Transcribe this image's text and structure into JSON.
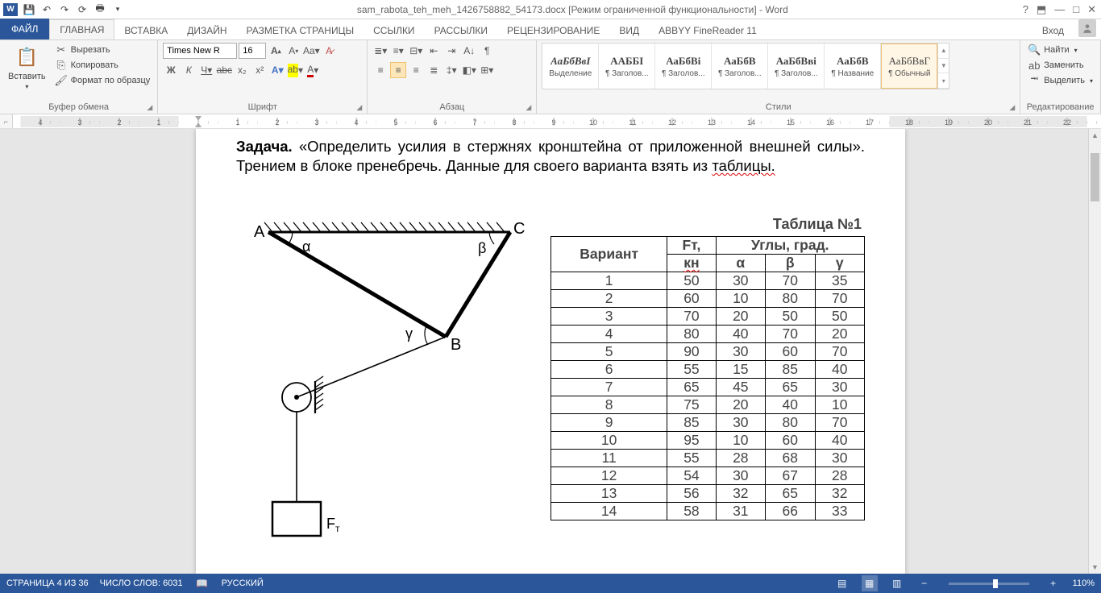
{
  "title": "sam_rabota_teh_meh_1426758882_54173.docx [Режим ограниченной функциональности] - Word",
  "tabs": {
    "file": "ФАЙЛ",
    "items": [
      "ГЛАВНАЯ",
      "ВСТАВКА",
      "ДИЗАЙН",
      "РАЗМЕТКА СТРАНИЦЫ",
      "ССЫЛКИ",
      "РАССЫЛКИ",
      "РЕЦЕНЗИРОВАНИЕ",
      "ВИД",
      "ABBYY FineReader 11"
    ],
    "login": "Вход"
  },
  "clipboard": {
    "paste": "Вставить",
    "cut": "Вырезать",
    "copy": "Копировать",
    "format": "Формат по образцу",
    "label": "Буфер обмена"
  },
  "font": {
    "name": "Times New R",
    "size": "16",
    "label": "Шрифт"
  },
  "para": {
    "label": "Абзац"
  },
  "styles": {
    "label": "Стили",
    "items": [
      {
        "prev": "АаБбВвІ",
        "name": "Выделение",
        "i": true
      },
      {
        "prev": "ААББІ",
        "name": "¶ Заголов..."
      },
      {
        "prev": "АаБбВі",
        "name": "¶ Заголов..."
      },
      {
        "prev": "АаБбВ",
        "name": "¶ Заголов..."
      },
      {
        "prev": "АаБбВві",
        "name": "¶ Заголов..."
      },
      {
        "prev": "АаБбВ",
        "name": "¶ Название"
      },
      {
        "prev": "АаБбВвГ",
        "name": "¶ Обычный",
        "sel": true
      }
    ]
  },
  "editing": {
    "find": "Найти",
    "replace": "Заменить",
    "select": "Выделить",
    "label": "Редактирование"
  },
  "ruler": {
    "marks": [
      "2",
      "1",
      "",
      "1",
      "2",
      "3",
      "4",
      "5",
      "6",
      "7",
      "8",
      "9",
      "10",
      "11",
      "12",
      "13",
      "14",
      "15",
      "16",
      "17",
      "18"
    ]
  },
  "task": {
    "head": "Задача.",
    "body1": "«Определить усилия в стержнях кронштейна от приложенной внешней силы». Трением в блоке пренебречь. Данные для своего варианта взять из ",
    "body2": "таблицы."
  },
  "diagram": {
    "labels": {
      "A": "A",
      "B": "B",
      "C": "C",
      "alpha": "α",
      "beta": "β",
      "gamma": "γ",
      "F": "Fт"
    }
  },
  "table": {
    "caption": "Таблица №1",
    "h_variant": "Вариант",
    "h_ft": "Fт,",
    "h_ft2": "кн",
    "h_ang": "Углы, град.",
    "h_a": "α",
    "h_b": "β",
    "h_g": "γ",
    "rows": [
      [
        1,
        50,
        30,
        70,
        35
      ],
      [
        2,
        60,
        10,
        80,
        70
      ],
      [
        3,
        70,
        20,
        50,
        50
      ],
      [
        4,
        80,
        40,
        70,
        20
      ],
      [
        5,
        90,
        30,
        60,
        70
      ],
      [
        6,
        55,
        15,
        85,
        40
      ],
      [
        7,
        65,
        45,
        65,
        30
      ],
      [
        8,
        75,
        20,
        40,
        10
      ],
      [
        9,
        85,
        30,
        80,
        70
      ],
      [
        10,
        95,
        10,
        60,
        40
      ],
      [
        11,
        55,
        28,
        68,
        30
      ],
      [
        12,
        54,
        30,
        67,
        28
      ],
      [
        13,
        56,
        32,
        65,
        32
      ],
      [
        14,
        58,
        31,
        66,
        33
      ]
    ]
  },
  "status": {
    "page": "СТРАНИЦА 4 ИЗ 36",
    "words": "ЧИСЛО СЛОВ: 6031",
    "lang": "РУССКИЙ",
    "zoom": "110%"
  },
  "colors": {
    "accent": "#2b579a",
    "ribbon": "#f5f5f5"
  }
}
